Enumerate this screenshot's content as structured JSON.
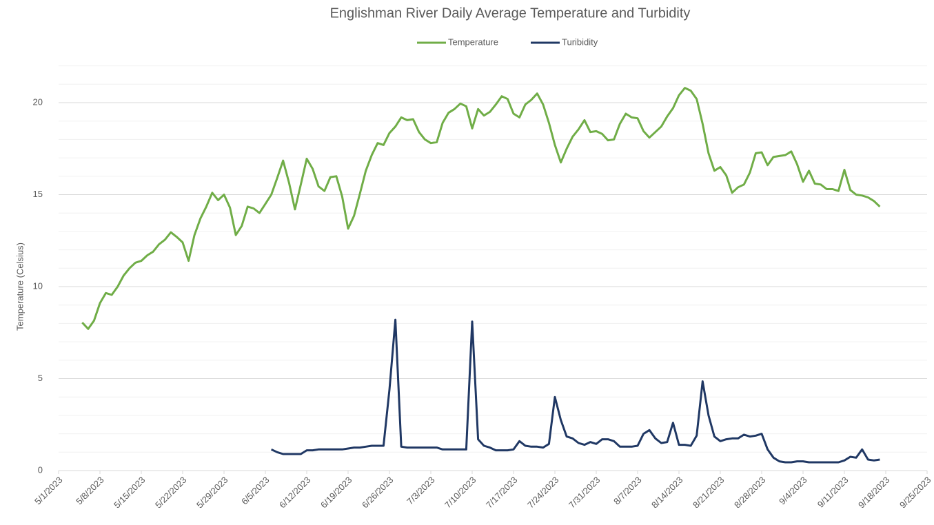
{
  "chart_data": {
    "type": "line",
    "title": "Englishman River Daily Average Temperature and Turbidity",
    "y_label": "Temperature (Celsius)",
    "x": [
      "5/5/2023",
      "5/6/2023",
      "5/7/2023",
      "5/8/2023",
      "5/9/2023",
      "5/10/2023",
      "5/11/2023",
      "5/12/2023",
      "5/13/2023",
      "5/14/2023",
      "5/15/2023",
      "5/16/2023",
      "5/17/2023",
      "5/18/2023",
      "5/19/2023",
      "5/20/2023",
      "5/21/2023",
      "5/22/2023",
      "5/23/2023",
      "5/24/2023",
      "5/25/2023",
      "5/26/2023",
      "5/27/2023",
      "5/28/2023",
      "5/29/2023",
      "5/30/2023",
      "5/31/2023",
      "6/1/2023",
      "6/2/2023",
      "6/3/2023",
      "6/4/2023",
      "6/5/2023",
      "6/6/2023",
      "6/7/2023",
      "6/8/2023",
      "6/9/2023",
      "6/10/2023",
      "6/11/2023",
      "6/12/2023",
      "6/13/2023",
      "6/14/2023",
      "6/15/2023",
      "6/16/2023",
      "6/17/2023",
      "6/18/2023",
      "6/19/2023",
      "6/20/2023",
      "6/21/2023",
      "6/22/2023",
      "6/23/2023",
      "6/24/2023",
      "6/25/2023",
      "6/26/2023",
      "6/27/2023",
      "6/28/2023",
      "6/29/2023",
      "6/30/2023",
      "7/1/2023",
      "7/2/2023",
      "7/3/2023",
      "7/4/2023",
      "7/5/2023",
      "7/6/2023",
      "7/7/2023",
      "7/8/2023",
      "7/9/2023",
      "7/10/2023",
      "7/11/2023",
      "7/12/2023",
      "7/13/2023",
      "7/14/2023",
      "7/15/2023",
      "7/16/2023",
      "7/17/2023",
      "7/18/2023",
      "7/19/2023",
      "7/20/2023",
      "7/21/2023",
      "7/22/2023",
      "7/23/2023",
      "7/24/2023",
      "7/25/2023",
      "7/26/2023",
      "7/27/2023",
      "7/28/2023",
      "7/29/2023",
      "7/30/2023",
      "7/31/2023",
      "8/1/2023",
      "8/2/2023",
      "8/3/2023",
      "8/4/2023",
      "8/5/2023",
      "8/6/2023",
      "8/7/2023",
      "8/8/2023",
      "8/9/2023",
      "8/10/2023",
      "8/11/2023",
      "8/12/2023",
      "8/13/2023",
      "8/14/2023",
      "8/15/2023",
      "8/16/2023",
      "8/17/2023",
      "8/18/2023",
      "8/19/2023",
      "8/20/2023",
      "8/21/2023",
      "8/22/2023",
      "8/23/2023",
      "8/24/2023",
      "8/25/2023",
      "8/26/2023",
      "8/27/2023",
      "8/28/2023",
      "8/29/2023",
      "8/30/2023",
      "8/31/2023",
      "9/1/2023",
      "9/2/2023",
      "9/3/2023",
      "9/4/2023",
      "9/5/2023",
      "9/6/2023",
      "9/7/2023",
      "9/8/2023",
      "9/9/2023",
      "9/10/2023",
      "9/11/2023",
      "9/12/2023",
      "9/13/2023",
      "9/14/2023",
      "9/15/2023",
      "9/16/2023",
      "9/17/2023"
    ],
    "series": [
      {
        "name": "Temperature",
        "color": "#70ad47",
        "values": [
          8.05,
          7.7,
          8.15,
          9.1,
          9.65,
          9.55,
          10.0,
          10.6,
          11.0,
          11.3,
          11.4,
          11.7,
          11.9,
          12.3,
          12.55,
          12.95,
          12.7,
          12.4,
          11.4,
          12.8,
          13.7,
          14.35,
          15.1,
          14.7,
          15.0,
          14.3,
          12.8,
          13.3,
          14.35,
          14.25,
          14.0,
          14.5,
          15.0,
          15.9,
          16.85,
          15.65,
          14.2,
          15.55,
          16.95,
          16.4,
          15.45,
          15.2,
          15.95,
          16.0,
          14.9,
          13.15,
          13.85,
          15.05,
          16.3,
          17.15,
          17.8,
          17.7,
          18.35,
          18.7,
          19.2,
          19.05,
          19.1,
          18.4,
          18.0,
          17.8,
          17.85,
          18.9,
          19.45,
          19.65,
          19.95,
          19.8,
          18.6,
          19.65,
          19.3,
          19.5,
          19.9,
          20.35,
          20.2,
          19.4,
          19.2,
          19.9,
          20.15,
          20.5,
          19.9,
          18.9,
          17.7,
          16.75,
          17.5,
          18.15,
          18.55,
          19.05,
          18.4,
          18.45,
          18.3,
          17.95,
          18.0,
          18.85,
          19.4,
          19.2,
          19.15,
          18.45,
          18.1,
          18.4,
          18.7,
          19.25,
          19.7,
          20.4,
          20.8,
          20.65,
          20.2,
          18.85,
          17.25,
          16.3,
          16.5,
          16.05,
          15.1,
          15.4,
          15.55,
          16.2,
          17.25,
          17.3,
          16.6,
          17.05,
          17.1,
          17.15,
          17.35,
          16.65,
          15.7,
          16.3,
          15.6,
          15.55,
          15.3,
          15.3,
          15.2,
          16.35,
          15.25,
          15.0,
          14.95,
          14.85,
          14.65,
          14.35
        ]
      },
      {
        "name": "Turibidity",
        "color": "#203864",
        "values": [
          null,
          null,
          null,
          null,
          null,
          null,
          null,
          null,
          null,
          null,
          null,
          null,
          null,
          null,
          null,
          null,
          null,
          null,
          null,
          null,
          null,
          null,
          null,
          null,
          null,
          null,
          null,
          null,
          null,
          null,
          null,
          null,
          1.15,
          1.0,
          0.9,
          0.9,
          0.9,
          0.9,
          1.1,
          1.1,
          1.15,
          1.15,
          1.15,
          1.15,
          1.15,
          1.2,
          1.25,
          1.25,
          1.3,
          1.35,
          1.35,
          1.35,
          4.4,
          8.2,
          1.3,
          1.25,
          1.25,
          1.25,
          1.25,
          1.25,
          1.25,
          1.15,
          1.15,
          1.15,
          1.15,
          1.15,
          8.1,
          1.7,
          1.35,
          1.25,
          1.1,
          1.1,
          1.1,
          1.15,
          1.6,
          1.35,
          1.3,
          1.3,
          1.25,
          1.45,
          4.0,
          2.75,
          1.85,
          1.75,
          1.5,
          1.4,
          1.55,
          1.45,
          1.7,
          1.7,
          1.6,
          1.3,
          1.3,
          1.3,
          1.35,
          2.0,
          2.2,
          1.75,
          1.5,
          1.55,
          2.6,
          1.4,
          1.4,
          1.35,
          1.9,
          4.85,
          3.0,
          1.85,
          1.6,
          1.7,
          1.75,
          1.75,
          1.95,
          1.85,
          1.9,
          2.0,
          1.15,
          0.7,
          0.5,
          0.45,
          0.45,
          0.5,
          0.5,
          0.45,
          0.45,
          0.45,
          0.45,
          0.45,
          0.45,
          0.55,
          0.75,
          0.7,
          1.15,
          0.6,
          0.55,
          0.6
        ]
      }
    ],
    "xlim": [
      "5/1/2023",
      "9/25/2023"
    ],
    "xticks": [
      "5/1/2023",
      "5/8/2023",
      "5/15/2023",
      "5/22/2023",
      "5/29/2023",
      "6/5/2023",
      "6/12/2023",
      "6/19/2023",
      "6/26/2023",
      "7/3/2023",
      "7/10/2023",
      "7/17/2023",
      "7/24/2023",
      "7/31/2023",
      "8/7/2023",
      "8/14/2023",
      "8/21/2023",
      "8/28/2023",
      "9/4/2023",
      "9/11/2023",
      "9/18/2023",
      "9/25/2023"
    ],
    "ylim": [
      0,
      22
    ],
    "yticks": [
      0,
      5,
      10,
      15,
      20
    ],
    "minor_yticks": [
      1,
      2,
      3,
      4,
      6,
      7,
      8,
      9,
      11,
      12,
      13,
      14,
      16,
      17,
      18,
      19,
      21,
      22
    ],
    "grid": true,
    "legend": "top"
  }
}
